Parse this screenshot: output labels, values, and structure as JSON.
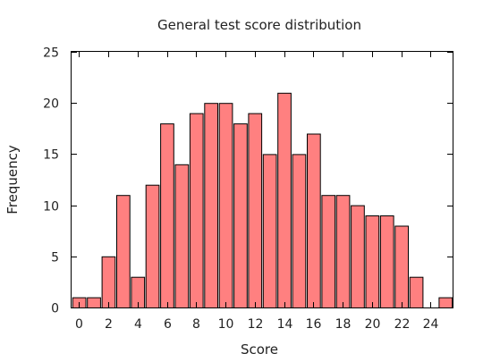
{
  "chart_data": {
    "type": "bar",
    "title": "General test score distribution",
    "xlabel": "Score",
    "ylabel": "Frequency",
    "x": [
      0,
      1,
      2,
      3,
      4,
      5,
      6,
      7,
      8,
      9,
      10,
      11,
      12,
      13,
      14,
      15,
      16,
      17,
      18,
      19,
      20,
      21,
      22,
      23,
      24,
      25
    ],
    "values": [
      1,
      1,
      5,
      11,
      3,
      12,
      18,
      14,
      19,
      20,
      20,
      18,
      19,
      15,
      21,
      15,
      17,
      11,
      11,
      10,
      9,
      9,
      8,
      3,
      0,
      1
    ],
    "xlim": [
      -0.5,
      25.5
    ],
    "ylim": [
      0,
      25
    ],
    "xticks": [
      0,
      2,
      4,
      6,
      8,
      10,
      12,
      14,
      16,
      18,
      20,
      22,
      24
    ],
    "yticks": [
      0,
      5,
      10,
      15,
      20,
      25
    ],
    "bar_color": "#ff8080",
    "grid": false,
    "legend": "none"
  }
}
